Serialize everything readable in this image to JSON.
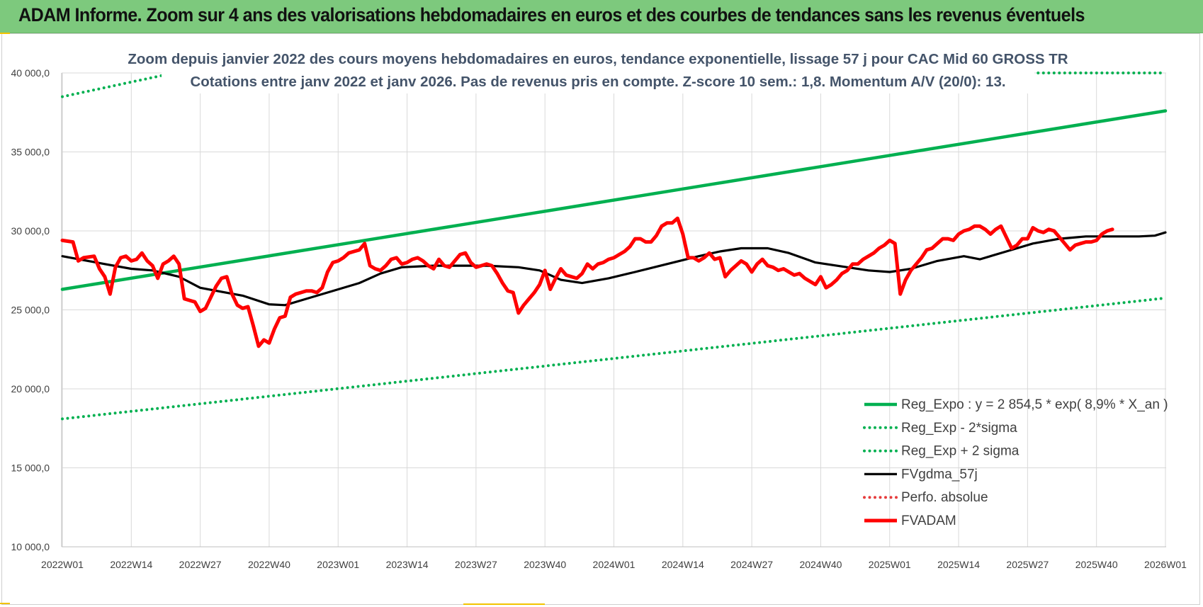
{
  "header": {
    "title": "ADAM Informe. Zoom sur 4 ans des valorisations hebdomadaires en euros et des courbes de tendances sans les revenus éventuels"
  },
  "chart_data": {
    "type": "line",
    "title": "Zoom depuis janvier 2022 des cours moyens hebdomadaires en euros, tendance exponentielle, lissage 57 j pour CAC Mid 60 GROSS TR",
    "subtitle": "Cotations entre janv 2022 et janv 2026. Pas de revenus pris en compte. Z-score 10 sem.: 1,8. Momentum A/V (20/0):  13.",
    "xlabel": "",
    "ylabel": "",
    "ylim": [
      10000,
      40000
    ],
    "yticks": [
      10000,
      15000,
      20000,
      25000,
      30000,
      35000,
      40000
    ],
    "ytick_labels": [
      "10 000,0",
      "15 000,0",
      "20 000,0",
      "25 000,0",
      "30 000,0",
      "35 000,0",
      "40 000,0"
    ],
    "xlim": [
      0,
      209
    ],
    "xticks": [
      0,
      13,
      26,
      39,
      52,
      65,
      78,
      91,
      104,
      117,
      130,
      143,
      156,
      169,
      182,
      195,
      208
    ],
    "xtick_labels": [
      "2022W01",
      "2022W14",
      "2022W27",
      "2022W40",
      "2023W01",
      "2023W14",
      "2023W27",
      "2023W40",
      "2024W01",
      "2024W14",
      "2024W27",
      "2024W40",
      "2025W01",
      "2025W14",
      "2025W27",
      "2025W40",
      "2026W01"
    ],
    "grid": true,
    "legend_position": "bottom-right",
    "colors": {
      "reg": "#00b050",
      "fvg": "#000000",
      "fvadam": "#ff0000",
      "perfo": "#e63c3c"
    },
    "series": [
      {
        "name": "Reg_Expo : y = 2 854,5 * exp( 8,9% *  X_an )",
        "style": "solid-thick",
        "color": "#00b050",
        "points": [
          [
            0,
            26300
          ],
          [
            208,
            37600
          ]
        ]
      },
      {
        "name": "Reg_Exp - 2*sigma",
        "style": "dotted",
        "color": "#00b050",
        "points": [
          [
            0,
            18100
          ],
          [
            208,
            25750
          ]
        ]
      },
      {
        "name": "Reg_Exp + 2 sigma",
        "style": "dotted",
        "color": "#00b050",
        "points": [
          [
            0,
            38500
          ],
          [
            19,
            39850
          ],
          [
            null,
            null
          ],
          [
            184,
            40000
          ],
          [
            208,
            40000
          ]
        ]
      },
      {
        "name": "FVgdma_57j",
        "style": "solid",
        "color": "#000000",
        "points": [
          [
            0,
            28400
          ],
          [
            8,
            27900
          ],
          [
            13,
            27600
          ],
          [
            17,
            27500
          ],
          [
            22,
            27100
          ],
          [
            26,
            26400
          ],
          [
            30,
            26150
          ],
          [
            34,
            25900
          ],
          [
            39,
            25350
          ],
          [
            42,
            25300
          ],
          [
            45,
            25600
          ],
          [
            50,
            26100
          ],
          [
            56,
            26700
          ],
          [
            60,
            27300
          ],
          [
            64,
            27700
          ],
          [
            70,
            27800
          ],
          [
            75,
            27800
          ],
          [
            80,
            27800
          ],
          [
            86,
            27700
          ],
          [
            90,
            27500
          ],
          [
            94,
            26900
          ],
          [
            98,
            26700
          ],
          [
            103,
            27000
          ],
          [
            108,
            27400
          ],
          [
            114,
            27900
          ],
          [
            120,
            28400
          ],
          [
            124,
            28700
          ],
          [
            128,
            28900
          ],
          [
            133,
            28900
          ],
          [
            137,
            28600
          ],
          [
            142,
            28000
          ],
          [
            148,
            27700
          ],
          [
            152,
            27500
          ],
          [
            156,
            27400
          ],
          [
            160,
            27600
          ],
          [
            165,
            28100
          ],
          [
            170,
            28400
          ],
          [
            173,
            28200
          ],
          [
            178,
            28700
          ],
          [
            183,
            29200
          ],
          [
            188,
            29500
          ],
          [
            193,
            29650
          ],
          [
            198,
            29650
          ],
          [
            203,
            29650
          ],
          [
            206,
            29700
          ],
          [
            208,
            29900
          ]
        ]
      },
      {
        "name": "Perfo. absolue",
        "style": "dotted",
        "color": "#e63c3c",
        "points": []
      },
      {
        "name": "FVADAM",
        "style": "solid-thick",
        "color": "#ff0000",
        "points": [
          [
            0,
            29400
          ],
          [
            2,
            29300
          ],
          [
            3,
            28100
          ],
          [
            4,
            28300
          ],
          [
            6,
            28400
          ],
          [
            7,
            27600
          ],
          [
            8,
            27100
          ],
          [
            9,
            26000
          ],
          [
            10,
            27700
          ],
          [
            11,
            28300
          ],
          [
            12,
            28400
          ],
          [
            13,
            28100
          ],
          [
            14,
            28200
          ],
          [
            15,
            28600
          ],
          [
            16,
            28100
          ],
          [
            17,
            27800
          ],
          [
            18,
            27000
          ],
          [
            19,
            27900
          ],
          [
            20,
            28100
          ],
          [
            21,
            28400
          ],
          [
            22,
            27900
          ],
          [
            23,
            25700
          ],
          [
            24,
            25600
          ],
          [
            25,
            25500
          ],
          [
            26,
            24900
          ],
          [
            27,
            25100
          ],
          [
            28,
            25800
          ],
          [
            29,
            26500
          ],
          [
            30,
            27000
          ],
          [
            31,
            27100
          ],
          [
            32,
            26000
          ],
          [
            33,
            25300
          ],
          [
            34,
            25100
          ],
          [
            35,
            25200
          ],
          [
            36,
            24000
          ],
          [
            37,
            22700
          ],
          [
            38,
            23100
          ],
          [
            39,
            22900
          ],
          [
            40,
            23800
          ],
          [
            41,
            24500
          ],
          [
            42,
            24600
          ],
          [
            43,
            25800
          ],
          [
            44,
            26000
          ],
          [
            45,
            26100
          ],
          [
            46,
            26200
          ],
          [
            47,
            26200
          ],
          [
            48,
            26100
          ],
          [
            49,
            26400
          ],
          [
            50,
            27400
          ],
          [
            51,
            28000
          ],
          [
            52,
            28100
          ],
          [
            53,
            28300
          ],
          [
            54,
            28600
          ],
          [
            55,
            28700
          ],
          [
            56,
            28800
          ],
          [
            57,
            29200
          ],
          [
            58,
            27800
          ],
          [
            59,
            27600
          ],
          [
            60,
            27500
          ],
          [
            61,
            27800
          ],
          [
            62,
            28200
          ],
          [
            63,
            28300
          ],
          [
            64,
            27900
          ],
          [
            65,
            28000
          ],
          [
            66,
            28200
          ],
          [
            67,
            28300
          ],
          [
            68,
            28100
          ],
          [
            69,
            27800
          ],
          [
            70,
            27600
          ],
          [
            71,
            28200
          ],
          [
            72,
            27800
          ],
          [
            73,
            27700
          ],
          [
            74,
            28100
          ],
          [
            75,
            28500
          ],
          [
            76,
            28600
          ],
          [
            77,
            28000
          ],
          [
            78,
            27700
          ],
          [
            79,
            27800
          ],
          [
            80,
            27900
          ],
          [
            81,
            27800
          ],
          [
            82,
            27300
          ],
          [
            83,
            26700
          ],
          [
            84,
            26200
          ],
          [
            85,
            26100
          ],
          [
            86,
            24800
          ],
          [
            87,
            25300
          ],
          [
            88,
            25700
          ],
          [
            89,
            26100
          ],
          [
            90,
            26600
          ],
          [
            91,
            27500
          ],
          [
            92,
            26300
          ],
          [
            93,
            27000
          ],
          [
            94,
            27600
          ],
          [
            95,
            27200
          ],
          [
            96,
            27100
          ],
          [
            97,
            27000
          ],
          [
            98,
            27300
          ],
          [
            99,
            27900
          ],
          [
            100,
            27600
          ],
          [
            101,
            27900
          ],
          [
            102,
            28000
          ],
          [
            103,
            28200
          ],
          [
            104,
            28300
          ],
          [
            105,
            28500
          ],
          [
            106,
            28700
          ],
          [
            107,
            29000
          ],
          [
            108,
            29500
          ],
          [
            109,
            29500
          ],
          [
            110,
            29300
          ],
          [
            111,
            29300
          ],
          [
            112,
            29700
          ],
          [
            113,
            30300
          ],
          [
            114,
            30500
          ],
          [
            115,
            30500
          ],
          [
            116,
            30800
          ],
          [
            117,
            29800
          ],
          [
            118,
            28300
          ],
          [
            119,
            28300
          ],
          [
            120,
            28100
          ],
          [
            121,
            28300
          ],
          [
            122,
            28600
          ],
          [
            123,
            28200
          ],
          [
            124,
            28300
          ],
          [
            125,
            27100
          ],
          [
            126,
            27500
          ],
          [
            127,
            27800
          ],
          [
            128,
            28100
          ],
          [
            129,
            27900
          ],
          [
            130,
            27400
          ],
          [
            131,
            27900
          ],
          [
            132,
            28200
          ],
          [
            133,
            27800
          ],
          [
            134,
            27700
          ],
          [
            135,
            27500
          ],
          [
            136,
            27600
          ],
          [
            137,
            27400
          ],
          [
            138,
            27200
          ],
          [
            139,
            27300
          ],
          [
            140,
            27000
          ],
          [
            141,
            26800
          ],
          [
            142,
            26600
          ],
          [
            143,
            27100
          ],
          [
            144,
            26400
          ],
          [
            145,
            26600
          ],
          [
            146,
            26900
          ],
          [
            147,
            27300
          ],
          [
            148,
            27500
          ],
          [
            149,
            27900
          ],
          [
            150,
            27900
          ],
          [
            151,
            28200
          ],
          [
            152,
            28400
          ],
          [
            153,
            28600
          ],
          [
            154,
            28900
          ],
          [
            155,
            29100
          ],
          [
            156,
            29400
          ],
          [
            157,
            29200
          ],
          [
            158,
            26000
          ],
          [
            159,
            26900
          ],
          [
            160,
            27500
          ],
          [
            161,
            27900
          ],
          [
            162,
            28300
          ],
          [
            163,
            28800
          ],
          [
            164,
            28900
          ],
          [
            165,
            29200
          ],
          [
            166,
            29500
          ],
          [
            167,
            29500
          ],
          [
            168,
            29400
          ],
          [
            169,
            29800
          ],
          [
            170,
            30000
          ],
          [
            171,
            30100
          ],
          [
            172,
            30300
          ],
          [
            173,
            30300
          ],
          [
            174,
            30100
          ],
          [
            175,
            29800
          ],
          [
            176,
            30100
          ],
          [
            177,
            30300
          ],
          [
            178,
            29600
          ],
          [
            179,
            28900
          ],
          [
            180,
            29100
          ],
          [
            181,
            29500
          ],
          [
            182,
            29500
          ],
          [
            183,
            30200
          ],
          [
            184,
            30000
          ],
          [
            185,
            29900
          ],
          [
            186,
            30100
          ],
          [
            187,
            30000
          ],
          [
            188,
            29600
          ],
          [
            189,
            29200
          ],
          [
            190,
            28800
          ],
          [
            191,
            29100
          ],
          [
            192,
            29200
          ],
          [
            193,
            29300
          ],
          [
            194,
            29300
          ],
          [
            195,
            29400
          ],
          [
            196,
            29800
          ],
          [
            197,
            30000
          ],
          [
            198,
            30100
          ]
        ]
      }
    ]
  }
}
